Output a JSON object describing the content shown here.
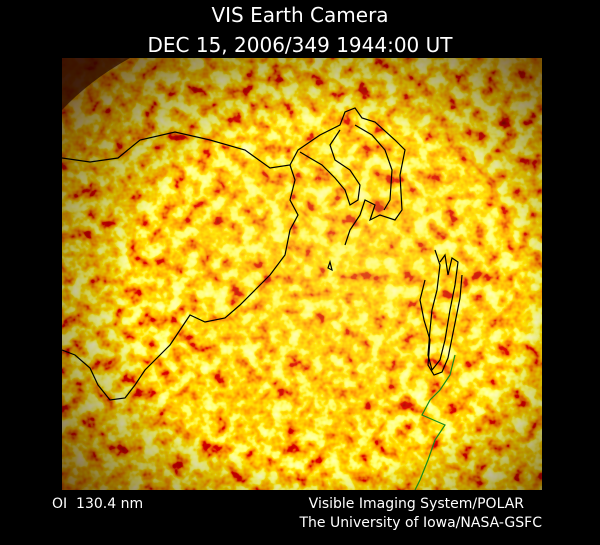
{
  "header": {
    "title": "VIS Earth Camera",
    "timestamp": "DEC 15, 2006/349 1944:00 UT"
  },
  "footer": {
    "wavelength": "OI  130.4 nm",
    "instrument": "Visible Imaging System/POLAR",
    "institution": "The University of Iowa/NASA-GSFC"
  }
}
